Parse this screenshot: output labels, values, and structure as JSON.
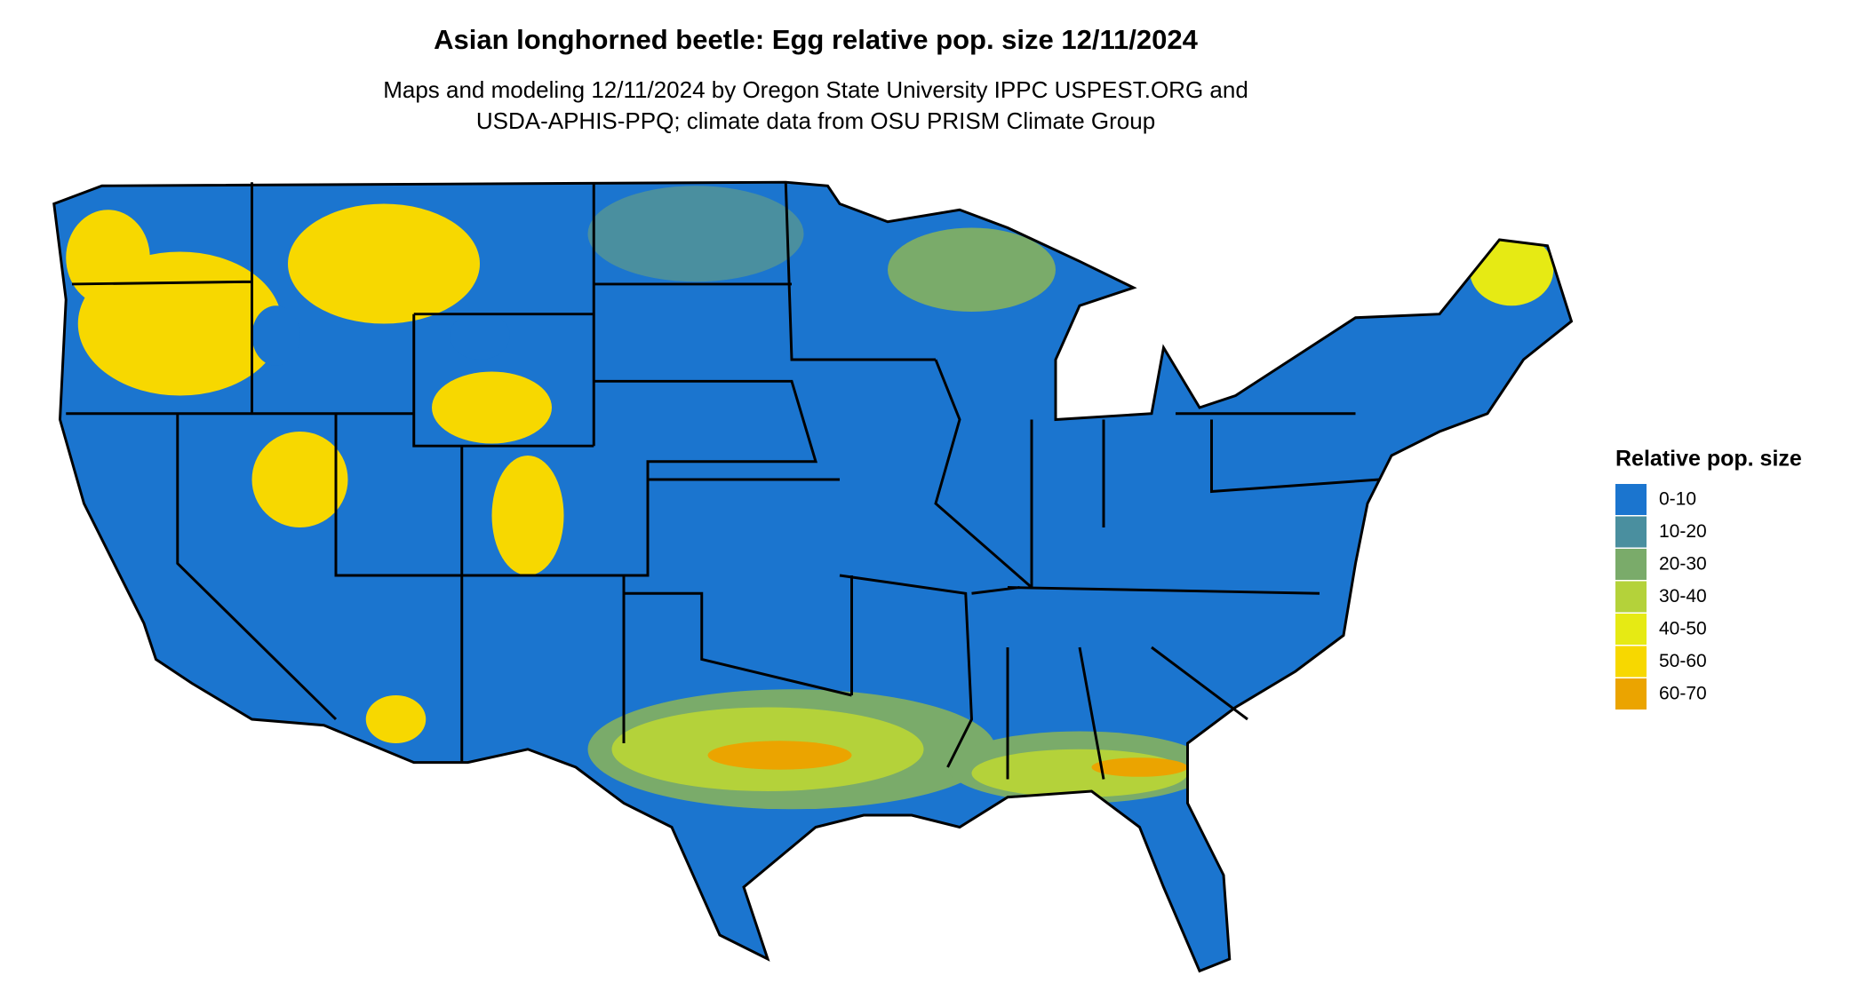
{
  "header": {
    "title": "Asian longhorned beetle: Egg relative pop. size 12/11/2024",
    "subtitle": [
      "Maps and modeling 12/11/2024 by Oregon State University IPPC USPEST.ORG and",
      "USDA-APHIS-PPQ; climate data from OSU PRISM Climate Group"
    ]
  },
  "legend": {
    "title": "Relative pop. size",
    "items": [
      {
        "label": "0-10",
        "color": "#1b75cf"
      },
      {
        "label": "10-20",
        "color": "#4a8f9f"
      },
      {
        "label": "20-30",
        "color": "#7aab6a"
      },
      {
        "label": "30-40",
        "color": "#b4d23a"
      },
      {
        "label": "40-50",
        "color": "#e6ea14"
      },
      {
        "label": "50-60",
        "color": "#f7d800"
      },
      {
        "label": "60-70",
        "color": "#eba400"
      }
    ]
  }
}
